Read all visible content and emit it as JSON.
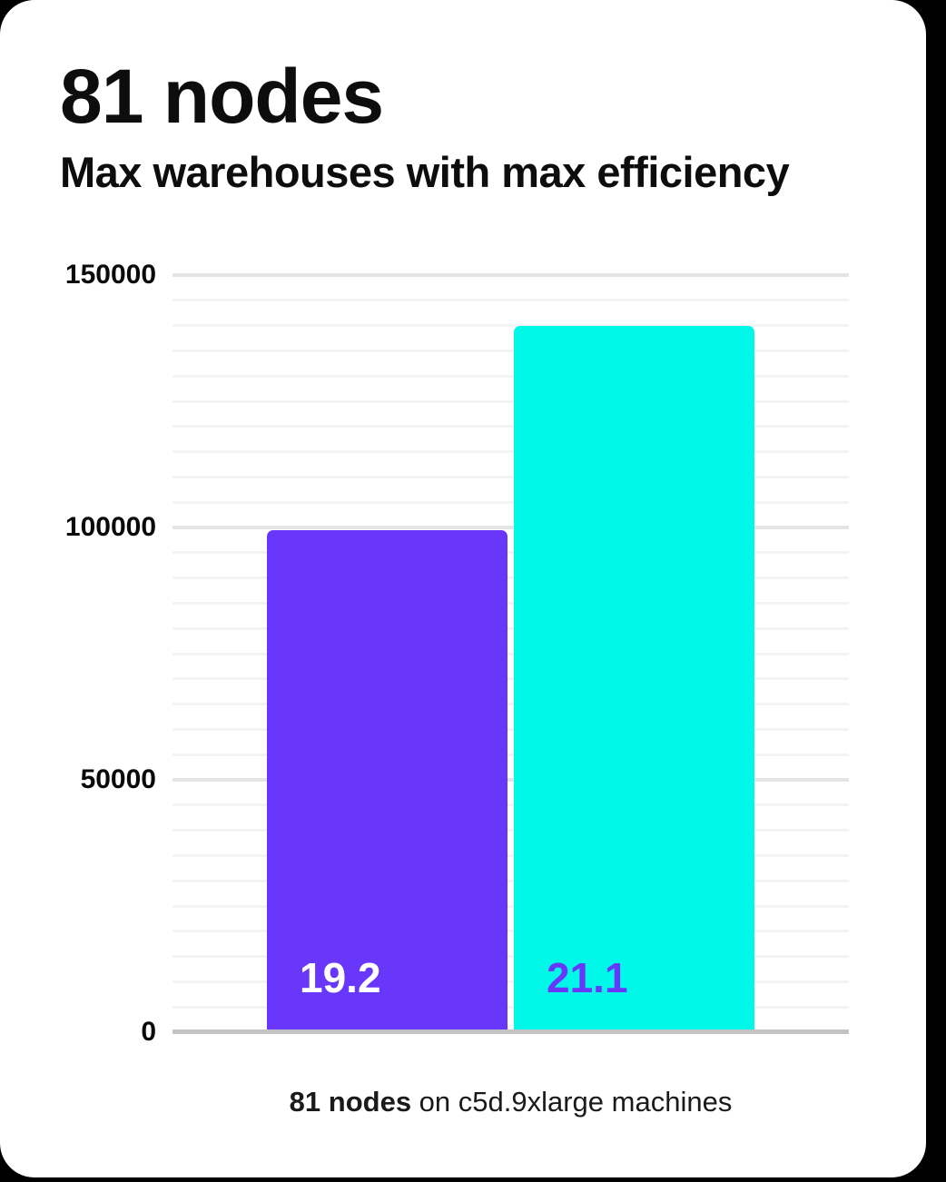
{
  "page": {
    "background_color": "#000000",
    "card_color": "#ffffff"
  },
  "header": {
    "title": "81 nodes",
    "subtitle": "Max warehouses with max efficiency"
  },
  "chart_data": {
    "type": "bar",
    "title": "81 nodes",
    "subtitle": "Max warehouses with max efficiency",
    "xlabel": "",
    "ylabel": "",
    "ylim": [
      0,
      150000
    ],
    "yticks": [
      0,
      50000,
      100000,
      150000
    ],
    "ytick_labels": [
      "0",
      "50000",
      "100000",
      "150000"
    ],
    "minor_grid_step": 5000,
    "major_grid_step": 50000,
    "grid": true,
    "legend": false,
    "bars": [
      {
        "value": 99500,
        "display_label": "19.2",
        "color": "#6837fb",
        "label_color": "#ffffff"
      },
      {
        "value": 140000,
        "display_label": "21.1",
        "color": "#00f8e9",
        "label_color": "#6837fb"
      }
    ],
    "axis_color": "#c3c3c3",
    "minor_grid_color": "#f3f3f3",
    "major_grid_color": "#e4e4e4"
  },
  "caption": {
    "bold_part": "81 nodes",
    "rest_part": " on c5d.9xlarge machines"
  }
}
